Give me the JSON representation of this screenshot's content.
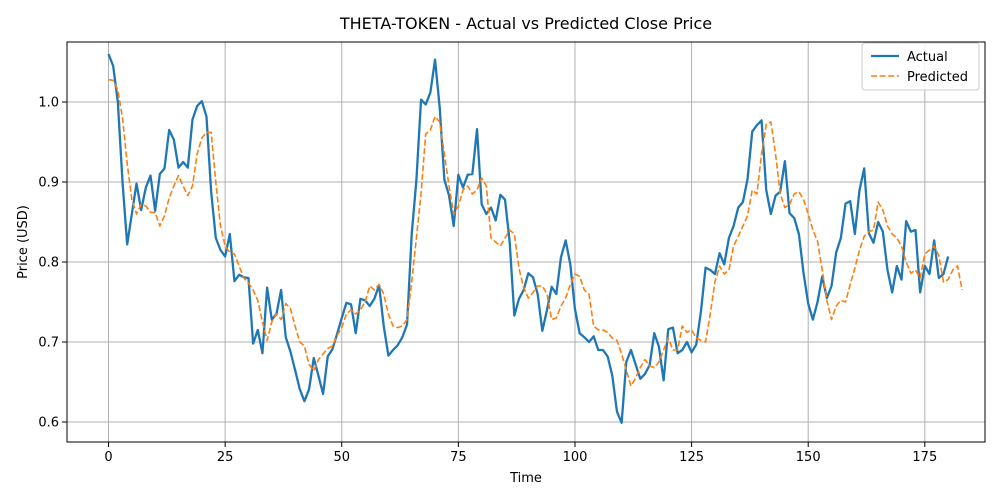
{
  "chart_data": {
    "type": "line",
    "title": "THETA-TOKEN - Actual vs Predicted Close Price",
    "xlabel": "Time",
    "ylabel": "Price (USD)",
    "xlim": [
      -8.9,
      187.9
    ],
    "ylim": [
      0.575,
      1.075
    ],
    "xticks": [
      0,
      25,
      50,
      75,
      100,
      125,
      150,
      175
    ],
    "yticks": [
      0.6,
      0.7,
      0.8,
      0.9,
      1.0
    ],
    "ytick_labels": [
      "0.6",
      "0.7",
      "0.8",
      "0.9",
      "1.0"
    ],
    "grid": true,
    "legend_position": "top-right",
    "series": [
      {
        "name": "Actual",
        "color": "#1f77b4",
        "style": "solid",
        "values": [
          1.06,
          1.045,
          1.0,
          0.9,
          0.822,
          0.86,
          0.898,
          0.865,
          0.893,
          0.908,
          0.864,
          0.91,
          0.917,
          0.965,
          0.953,
          0.918,
          0.925,
          0.918,
          0.978,
          0.995,
          1.001,
          0.982,
          0.888,
          0.83,
          0.815,
          0.807,
          0.835,
          0.776,
          0.784,
          0.781,
          0.78,
          0.698,
          0.715,
          0.686,
          0.768,
          0.728,
          0.735,
          0.765,
          0.706,
          0.688,
          0.665,
          0.641,
          0.626,
          0.641,
          0.68,
          0.658,
          0.635,
          0.682,
          0.691,
          0.71,
          0.73,
          0.749,
          0.747,
          0.711,
          0.754,
          0.752,
          0.745,
          0.754,
          0.771,
          0.72,
          0.683,
          0.69,
          0.696,
          0.706,
          0.722,
          0.835,
          0.902,
          1.003,
          0.997,
          1.012,
          1.053,
          0.993,
          0.903,
          0.883,
          0.845,
          0.909,
          0.893,
          0.909,
          0.91,
          0.966,
          0.872,
          0.86,
          0.868,
          0.852,
          0.884,
          0.878,
          0.825,
          0.733,
          0.754,
          0.765,
          0.786,
          0.781,
          0.76,
          0.714,
          0.74,
          0.769,
          0.76,
          0.806,
          0.827,
          0.797,
          0.741,
          0.711,
          0.706,
          0.7,
          0.707,
          0.69,
          0.69,
          0.682,
          0.658,
          0.613,
          0.599,
          0.675,
          0.69,
          0.672,
          0.654,
          0.66,
          0.671,
          0.711,
          0.694,
          0.652,
          0.716,
          0.718,
          0.686,
          0.69,
          0.7,
          0.687,
          0.697,
          0.738,
          0.793,
          0.79,
          0.785,
          0.811,
          0.797,
          0.83,
          0.845,
          0.868,
          0.875,
          0.904,
          0.963,
          0.971,
          0.977,
          0.89,
          0.86,
          0.883,
          0.888,
          0.926,
          0.861,
          0.855,
          0.835,
          0.786,
          0.748,
          0.728,
          0.75,
          0.782,
          0.755,
          0.77,
          0.812,
          0.83,
          0.873,
          0.876,
          0.835,
          0.89,
          0.917,
          0.836,
          0.824,
          0.85,
          0.838,
          0.79,
          0.762,
          0.795,
          0.778,
          0.851,
          0.838,
          0.84,
          0.762,
          0.795,
          0.785,
          0.827,
          0.78,
          0.785,
          0.807
        ]
      },
      {
        "name": "Predicted",
        "color": "#ff7f0e",
        "style": "dashed",
        "values": [
          1.028,
          1.027,
          1.015,
          0.98,
          0.923,
          0.878,
          0.86,
          0.872,
          0.87,
          0.862,
          0.862,
          0.845,
          0.858,
          0.88,
          0.895,
          0.908,
          0.895,
          0.883,
          0.895,
          0.935,
          0.955,
          0.962,
          0.962,
          0.9,
          0.845,
          0.82,
          0.812,
          0.81,
          0.795,
          0.78,
          0.774,
          0.765,
          0.752,
          0.725,
          0.702,
          0.725,
          0.735,
          0.728,
          0.748,
          0.742,
          0.72,
          0.7,
          0.695,
          0.672,
          0.664,
          0.678,
          0.685,
          0.692,
          0.695,
          0.708,
          0.718,
          0.735,
          0.74,
          0.735,
          0.74,
          0.75,
          0.77,
          0.765,
          0.772,
          0.76,
          0.735,
          0.72,
          0.718,
          0.72,
          0.728,
          0.775,
          0.83,
          0.885,
          0.96,
          0.965,
          0.982,
          0.975,
          0.935,
          0.895,
          0.86,
          0.87,
          0.89,
          0.895,
          0.885,
          0.89,
          0.905,
          0.895,
          0.83,
          0.825,
          0.82,
          0.83,
          0.84,
          0.835,
          0.792,
          0.768,
          0.755,
          0.762,
          0.77,
          0.77,
          0.76,
          0.728,
          0.73,
          0.745,
          0.755,
          0.772,
          0.785,
          0.782,
          0.765,
          0.76,
          0.72,
          0.715,
          0.715,
          0.712,
          0.705,
          0.702,
          0.685,
          0.665,
          0.645,
          0.655,
          0.668,
          0.678,
          0.67,
          0.668,
          0.675,
          0.69,
          0.705,
          0.69,
          0.69,
          0.72,
          0.712,
          0.715,
          0.705,
          0.702,
          0.7,
          0.735,
          0.775,
          0.795,
          0.785,
          0.79,
          0.82,
          0.832,
          0.845,
          0.858,
          0.89,
          0.885,
          0.935,
          0.972,
          0.975,
          0.935,
          0.885,
          0.868,
          0.872,
          0.885,
          0.888,
          0.878,
          0.86,
          0.84,
          0.826,
          0.79,
          0.752,
          0.728,
          0.745,
          0.752,
          0.75,
          0.772,
          0.792,
          0.815,
          0.832,
          0.838,
          0.84,
          0.875,
          0.865,
          0.845,
          0.835,
          0.83,
          0.82,
          0.8,
          0.786,
          0.79,
          0.78,
          0.81,
          0.815,
          0.82,
          0.808,
          0.775,
          0.778,
          0.79,
          0.795,
          0.765
        ]
      }
    ]
  }
}
